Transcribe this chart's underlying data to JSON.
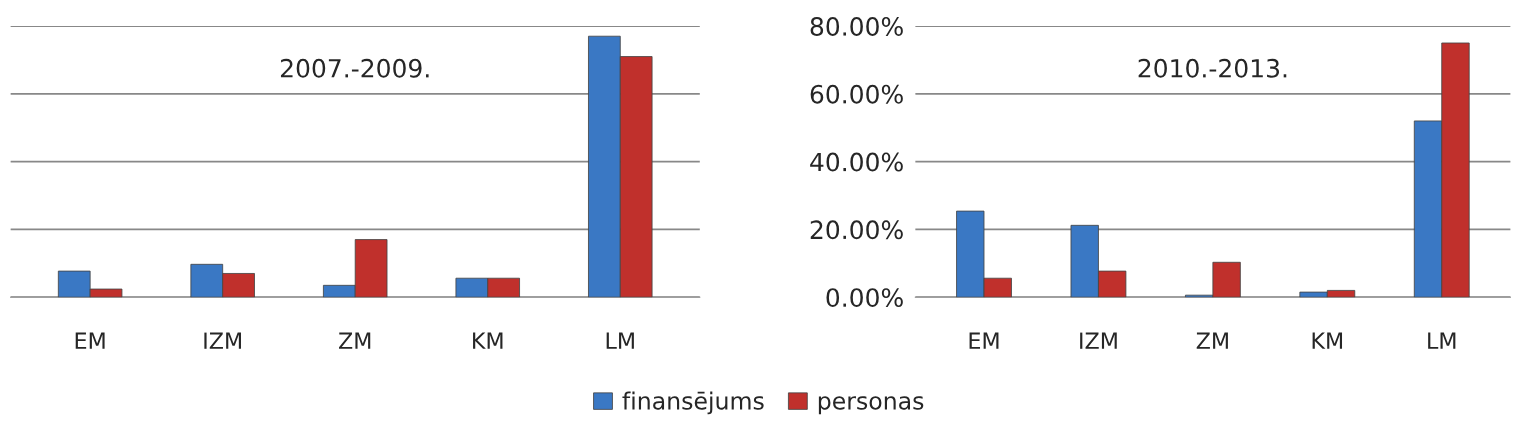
{
  "chart_data": [
    {
      "type": "bar",
      "title": "2007.-2009.",
      "categories": [
        "EM",
        "IZM",
        "ZM",
        "KM",
        "LM"
      ],
      "series": [
        {
          "name": "finansējums",
          "color": "#3a78c4",
          "values": [
            7.7,
            9.7,
            3.5,
            5.6,
            77
          ]
        },
        {
          "name": "personas",
          "color": "#c0302c",
          "values": [
            2.4,
            7,
            17,
            5.6,
            71
          ]
        }
      ],
      "ylim": [
        0,
        80
      ],
      "yticks": [
        {
          "value": 0,
          "label": null
        },
        {
          "value": 20,
          "label": null
        },
        {
          "value": 40,
          "label": null
        },
        {
          "value": 60,
          "label": null
        },
        {
          "value": 80,
          "label": null
        }
      ],
      "tick_labels": "x",
      "grid": "y",
      "legend": "bottom"
    },
    {
      "type": "bar",
      "title": "2010.-2013.",
      "categories": [
        "EM",
        "IZM",
        "ZM",
        "KM",
        "LM"
      ],
      "series": [
        {
          "name": "finansējums",
          "color": "#3a78c4",
          "values": [
            25.4,
            21.2,
            0.6,
            1.5,
            52
          ]
        },
        {
          "name": "personas",
          "color": "#c0302c",
          "values": [
            5.6,
            7.7,
            10.3,
            2,
            75
          ]
        }
      ],
      "ylim": [
        0,
        80
      ],
      "yticks": [
        {
          "value": 0,
          "label": "0.00%"
        },
        {
          "value": 20,
          "label": "20.00%"
        },
        {
          "value": 40,
          "label": "40.00%"
        },
        {
          "value": 60,
          "label": "60.00%"
        },
        {
          "value": 80,
          "label": "80.00%"
        }
      ],
      "grid": "y"
    }
  ]
}
